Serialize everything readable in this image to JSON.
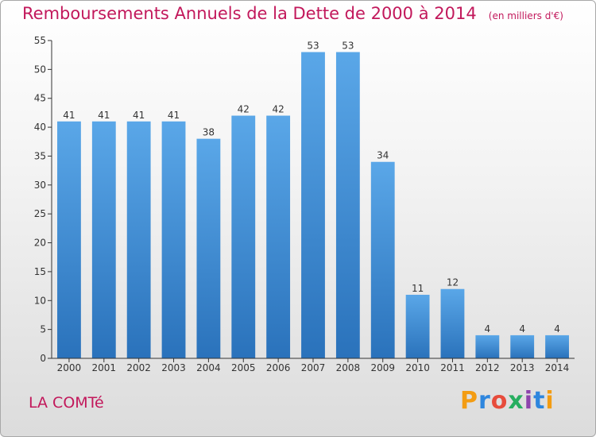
{
  "header": {
    "title": "Remboursements Annuels de la Dette de 2000 à 2014",
    "subtitle": "(en milliers d'€)"
  },
  "footer": {
    "place": "LA COMTé",
    "logo_text": "Proxiti",
    "logo_colors": [
      "#f39c12",
      "#2e86de",
      "#e74c3c",
      "#27ae60",
      "#8e44ad",
      "#2e86de",
      "#f39c12"
    ]
  },
  "chart_data": {
    "type": "bar",
    "title": "Remboursements Annuels de la Dette de 2000 à 2014",
    "subtitle": "(en milliers d'€)",
    "xlabel": "",
    "ylabel": "",
    "categories": [
      "2000",
      "2001",
      "2002",
      "2003",
      "2004",
      "2005",
      "2006",
      "2007",
      "2008",
      "2009",
      "2010",
      "2011",
      "2012",
      "2013",
      "2014"
    ],
    "values": [
      41,
      41,
      41,
      41,
      38,
      42,
      42,
      53,
      53,
      34,
      11,
      12,
      4,
      4,
      4
    ],
    "ylim": [
      0,
      55
    ],
    "yticks": [
      0,
      5,
      10,
      15,
      20,
      25,
      30,
      35,
      40,
      45,
      50,
      55
    ],
    "grid": false,
    "bar_color": "#3d8fd6",
    "bar_color_dark": "#2a6fb5"
  }
}
